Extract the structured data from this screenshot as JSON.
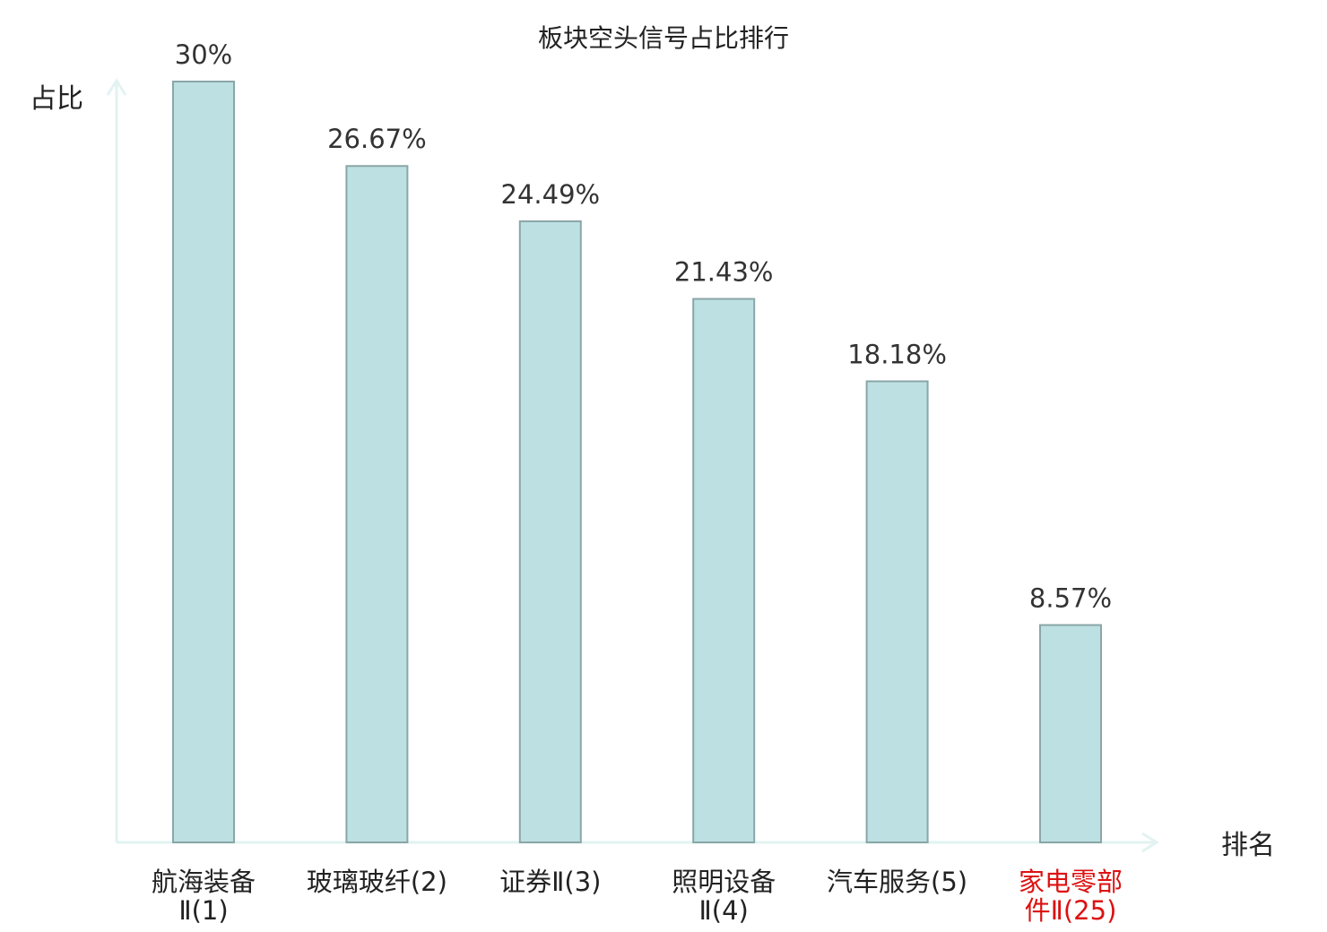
{
  "chart_data": {
    "type": "bar",
    "title": "板块空头信号占比排行",
    "ylabel": "占比",
    "xlabel": "排名",
    "categories": [
      [
        "航海装备",
        "Ⅱ(1)"
      ],
      [
        "玻璃玻纤(2)"
      ],
      [
        "证券Ⅱ(3)"
      ],
      [
        "照明设备",
        "Ⅱ(4)"
      ],
      [
        "汽车服务(5)"
      ],
      [
        "家电零部",
        "件Ⅱ(25)"
      ]
    ],
    "values": [
      30,
      26.67,
      24.49,
      21.43,
      18.18,
      8.57
    ],
    "value_labels": [
      "30%",
      "26.67%",
      "24.49%",
      "21.43%",
      "18.18%",
      "8.57%"
    ],
    "ylim": [
      0,
      30
    ],
    "grid": false,
    "highlight_index": 5,
    "colors": {
      "bar_fill": "#bde0e2",
      "bar_stroke": "#8aa6a8",
      "axis": "#e2f3f1",
      "text": "#222222",
      "value_text": "#333333",
      "highlight_text": "#dd1111"
    }
  }
}
